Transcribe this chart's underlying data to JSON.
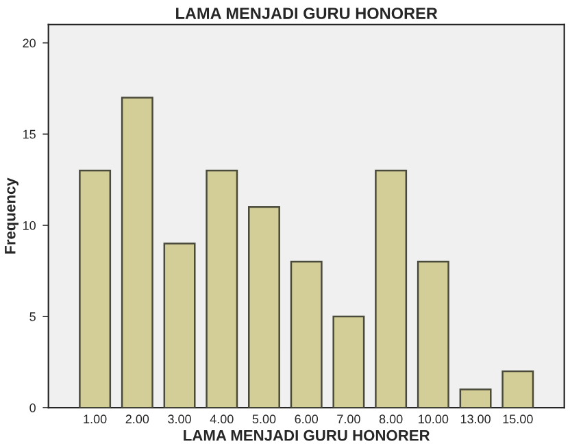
{
  "chart_data": {
    "type": "bar",
    "title": "LAMA MENJADI GURU HONORER",
    "xlabel": "LAMA MENJADI GURU HONORER",
    "ylabel": "Frequency",
    "categories": [
      "1.00",
      "2.00",
      "3.00",
      "4.00",
      "5.00",
      "6.00",
      "7.00",
      "8.00",
      "10.00",
      "13.00",
      "15.00"
    ],
    "values": [
      13,
      17,
      9,
      13,
      11,
      8,
      5,
      13,
      8,
      1,
      2
    ],
    "color": "#d3ce98",
    "ylim": [
      0,
      21
    ],
    "yticks": [
      0,
      5,
      10,
      15,
      20
    ],
    "grid": false
  }
}
